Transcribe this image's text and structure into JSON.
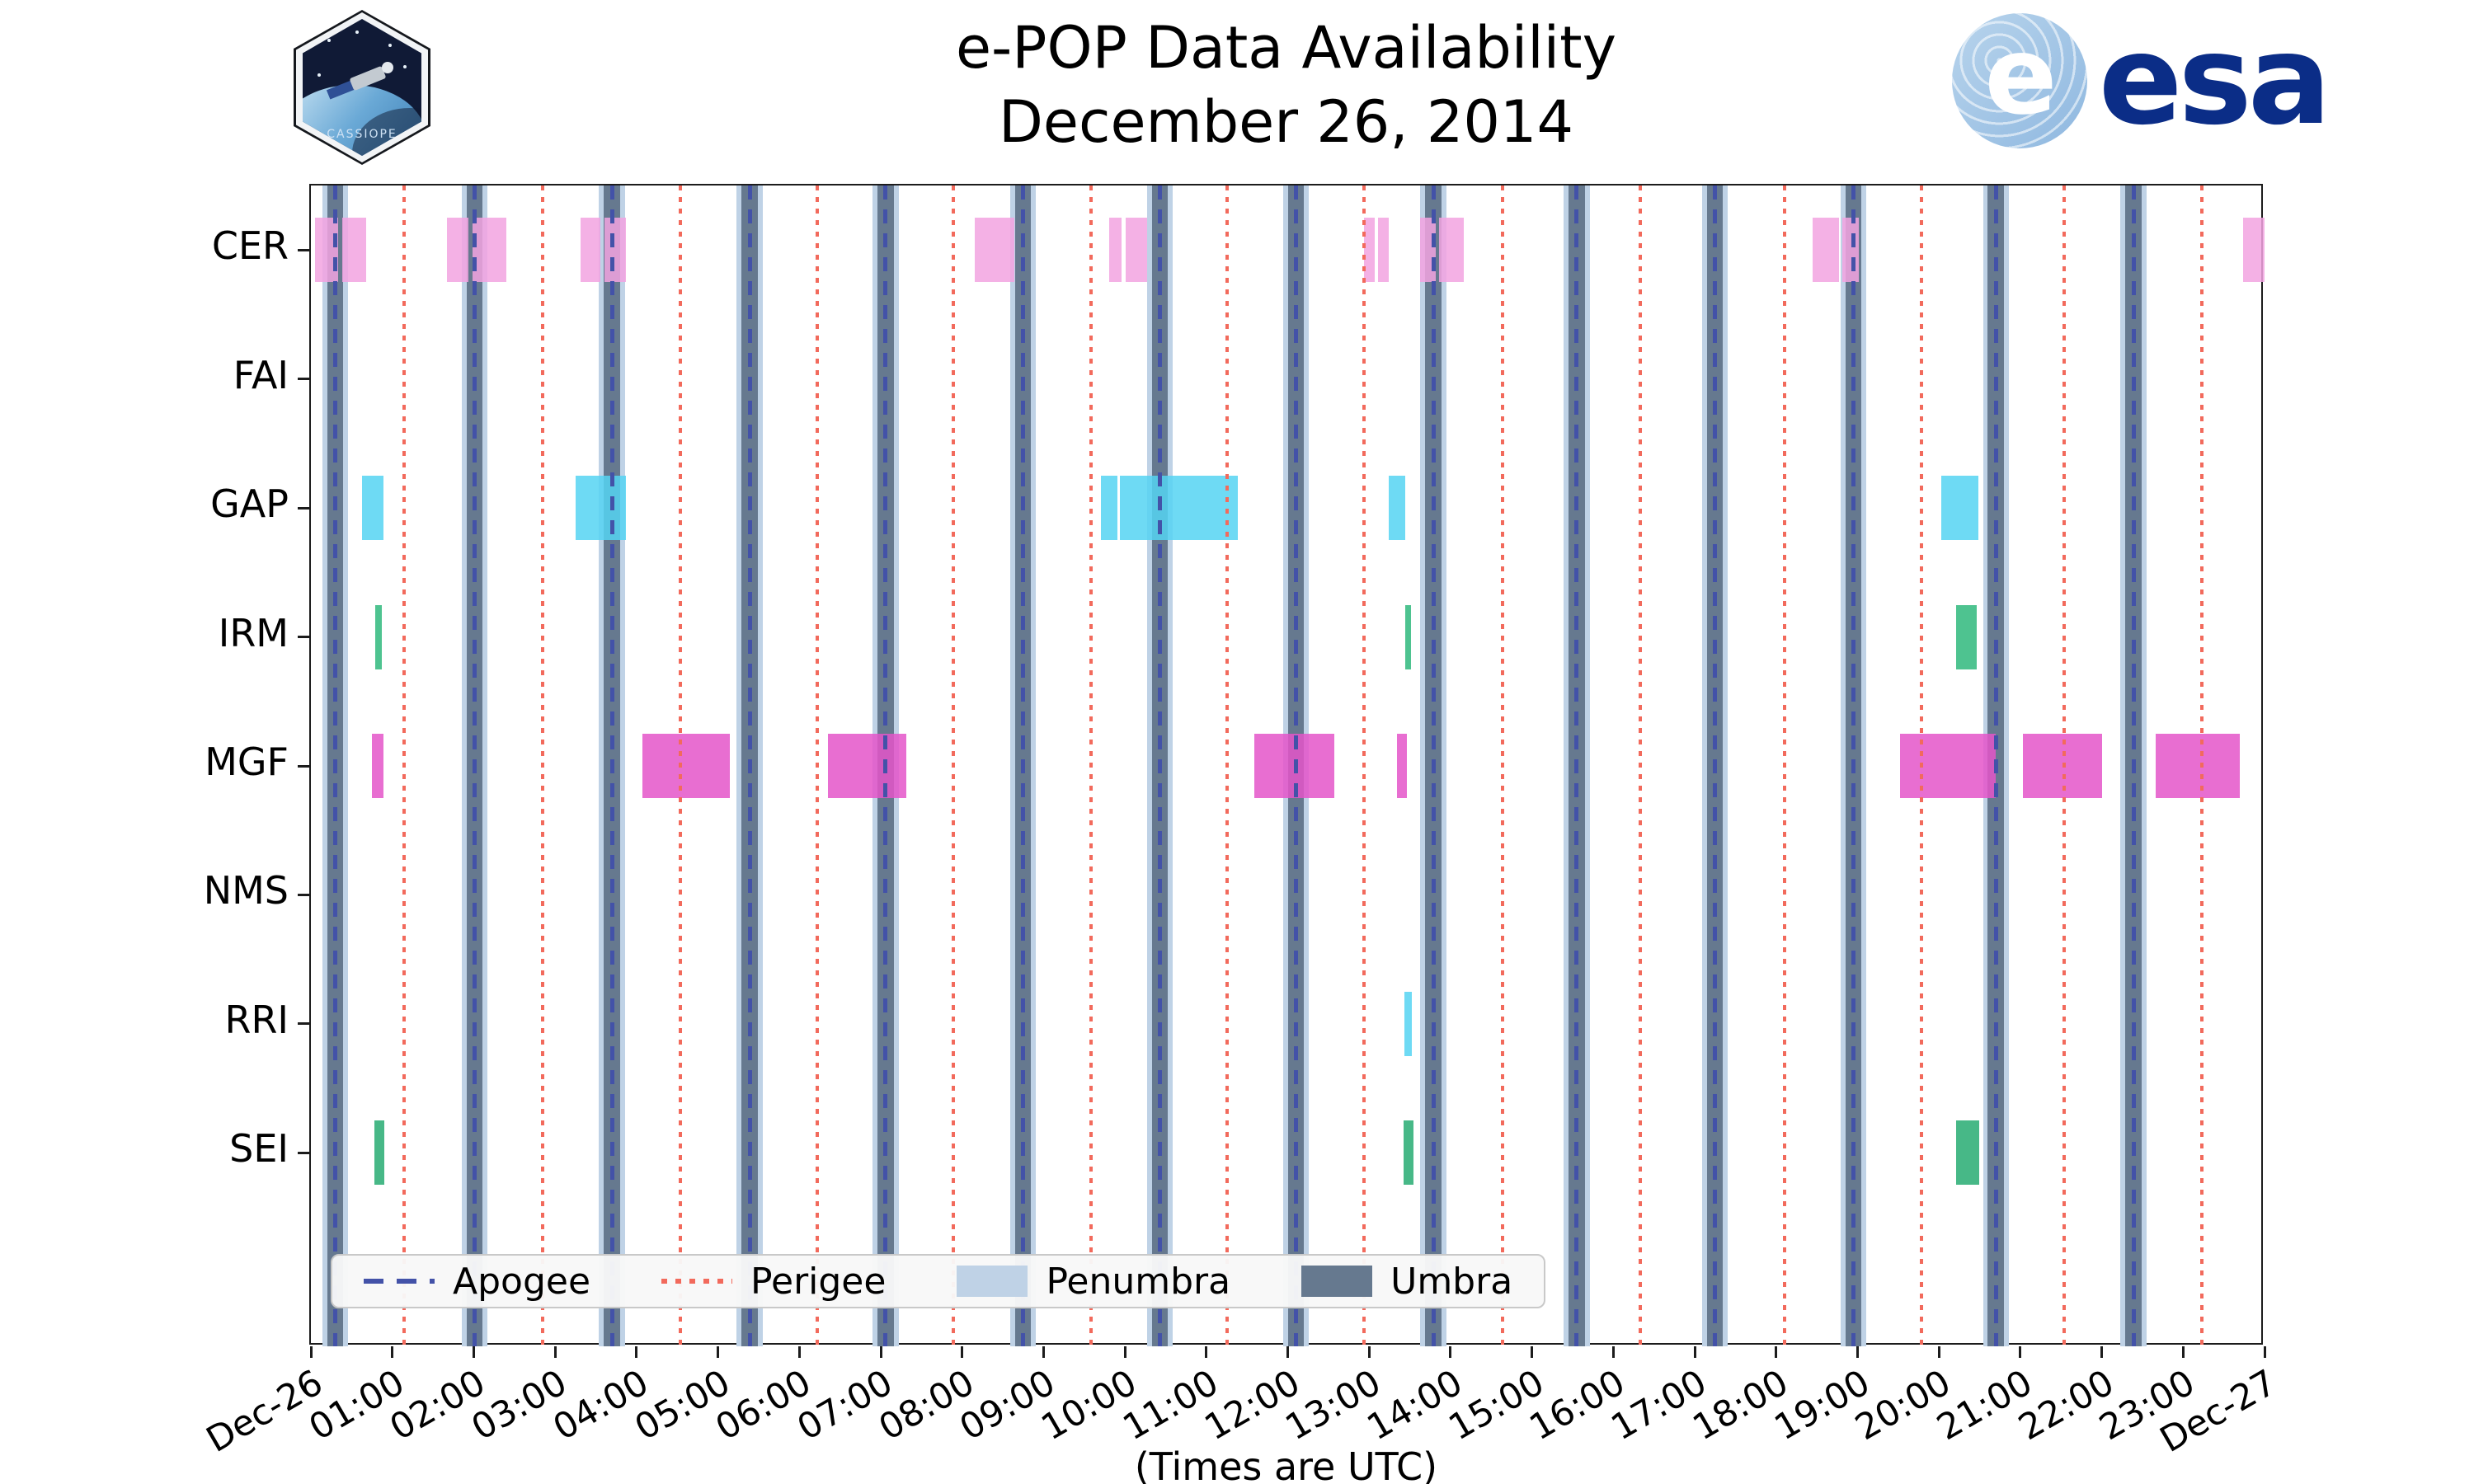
{
  "header": {
    "title_line1": "e-POP Data Availability",
    "title_line2": "December 26, 2014",
    "cassiope_patch_label": "CASSIOPE",
    "esa_wordmark": "esa",
    "esa_symbol_letter": "e"
  },
  "footer": {
    "xlabel": "(Times are UTC)"
  },
  "legend": {
    "items": [
      {
        "label": "Apogee",
        "style": "dashed-line",
        "color": "#4352a8"
      },
      {
        "label": "Perigee",
        "style": "dotted-line",
        "color": "#f26a5c"
      },
      {
        "label": "Penumbra",
        "style": "patch",
        "color": "#bfd2e6"
      },
      {
        "label": "Umbra",
        "style": "patch",
        "color": "#66798f"
      }
    ]
  },
  "chart_data": {
    "type": "timeline",
    "title": "e-POP Data Availability — December 26, 2014",
    "x_axis": {
      "unit": "hours UTC",
      "range": [
        0,
        24
      ],
      "tick_labels": [
        "Dec-26",
        "01:00",
        "02:00",
        "03:00",
        "04:00",
        "05:00",
        "06:00",
        "07:00",
        "08:00",
        "09:00",
        "10:00",
        "11:00",
        "12:00",
        "13:00",
        "14:00",
        "15:00",
        "16:00",
        "17:00",
        "18:00",
        "19:00",
        "20:00",
        "21:00",
        "22:00",
        "23:00",
        "Dec-27"
      ]
    },
    "y_axis": {
      "instruments": [
        "CER",
        "FAI",
        "GAP",
        "IRM",
        "MGF",
        "NMS",
        "RRI",
        "SEI"
      ]
    },
    "colors": {
      "apogee": "#4352a8",
      "perigee": "#f26a5c",
      "penumbra": "#bfd2e6",
      "umbra": "#66798f",
      "CER": "#f2a3e1",
      "FAI": "#bbbbbb",
      "GAP": "#55d4f2",
      "IRM": "#2fb87c",
      "MGF": "#e455c9",
      "NMS": "#bbbbbb",
      "RRI": "#55d4f2",
      "SEI": "#27ab72"
    },
    "apogee_hours": [
      0.3,
      2.01,
      3.7,
      5.39,
      7.06,
      8.75,
      10.43,
      12.1,
      13.79,
      15.55,
      17.25,
      18.95,
      20.7,
      22.39
    ],
    "perigee_hours": [
      1.14,
      2.85,
      4.54,
      6.22,
      7.89,
      9.58,
      11.25,
      12.94,
      14.64,
      16.33,
      18.1,
      19.79,
      21.54,
      23.23
    ],
    "umbra_half_width_hours": 0.1,
    "penumbra_half_width_hours": 0.16,
    "availability": {
      "CER": [
        [
          0.05,
          0.34
        ],
        [
          0.38,
          0.68
        ],
        [
          1.67,
          1.94
        ],
        [
          1.99,
          2.4
        ],
        [
          3.31,
          3.56
        ],
        [
          3.61,
          3.87
        ],
        [
          8.15,
          8.64
        ],
        [
          9.81,
          9.96
        ],
        [
          10.01,
          10.27
        ],
        [
          12.94,
          13.07
        ],
        [
          13.11,
          13.24
        ],
        [
          13.63,
          13.82
        ],
        [
          13.86,
          14.16
        ],
        [
          18.45,
          18.77
        ],
        [
          18.81,
          19.02
        ],
        [
          23.74,
          24.0
        ]
      ],
      "FAI": [],
      "GAP": [
        [
          0.63,
          0.89
        ],
        [
          3.25,
          3.87
        ],
        [
          9.7,
          9.91
        ],
        [
          9.94,
          11.39
        ],
        [
          13.24,
          13.44
        ],
        [
          20.03,
          20.49
        ]
      ],
      "IRM": [
        [
          0.79,
          0.87
        ],
        [
          13.44,
          13.52
        ],
        [
          20.21,
          20.46
        ]
      ],
      "MGF": [
        [
          0.75,
          0.89
        ],
        [
          4.07,
          5.15
        ],
        [
          6.35,
          7.31
        ],
        [
          11.59,
          12.57
        ],
        [
          13.34,
          13.46
        ],
        [
          19.52,
          20.7
        ],
        [
          21.03,
          22.01
        ],
        [
          22.66,
          23.7
        ]
      ],
      "NMS": [],
      "RRI": [
        [
          13.43,
          13.52
        ]
      ],
      "SEI": [
        [
          0.78,
          0.9
        ],
        [
          13.42,
          13.55
        ],
        [
          20.21,
          20.5
        ]
      ]
    }
  }
}
